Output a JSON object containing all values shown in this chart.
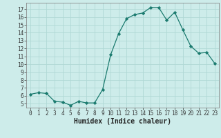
{
  "x": [
    0,
    1,
    2,
    3,
    4,
    5,
    6,
    7,
    8,
    9,
    10,
    11,
    12,
    13,
    14,
    15,
    16,
    17,
    18,
    19,
    20,
    21,
    22,
    23
  ],
  "y": [
    6.2,
    6.4,
    6.3,
    5.3,
    5.2,
    4.8,
    5.3,
    5.1,
    5.1,
    6.8,
    11.2,
    13.9,
    15.8,
    16.3,
    16.5,
    17.2,
    17.2,
    15.6,
    16.6,
    14.4,
    12.3,
    11.4,
    11.5,
    10.1
  ],
  "line_color": "#1a7a6e",
  "marker": "D",
  "marker_size": 2.2,
  "bg_color": "#cdecea",
  "grid_color": "#b0d8d5",
  "xlabel": "Humidex (Indice chaleur)",
  "xlim": [
    -0.5,
    23.5
  ],
  "ylim": [
    4.5,
    17.8
  ],
  "yticks": [
    5,
    6,
    7,
    8,
    9,
    10,
    11,
    12,
    13,
    14,
    15,
    16,
    17
  ],
  "xticks": [
    0,
    1,
    2,
    3,
    4,
    5,
    6,
    7,
    8,
    9,
    10,
    11,
    12,
    13,
    14,
    15,
    16,
    17,
    18,
    19,
    20,
    21,
    22,
    23
  ],
  "tick_fontsize": 5.5,
  "xlabel_fontsize": 7.0,
  "spine_color": "#888888"
}
